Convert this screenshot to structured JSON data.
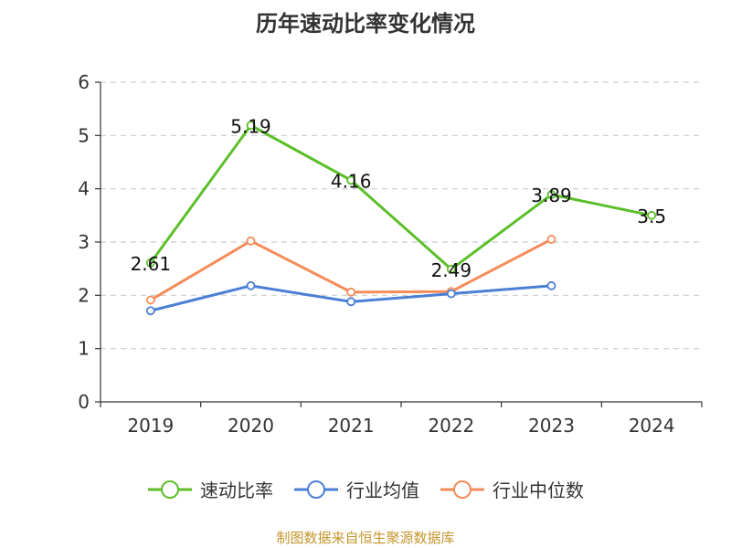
{
  "chart_data": {
    "type": "line",
    "title": "历年速动比率变化情况",
    "categories": [
      "2019",
      "2020",
      "2021",
      "2022",
      "2023",
      "2024"
    ],
    "ylim": [
      0,
      6
    ],
    "yticks": [
      0,
      1,
      2,
      3,
      4,
      5,
      6
    ],
    "grid": true,
    "legend_position": "bottom",
    "series": [
      {
        "name": "速动比率",
        "color": "#5cbf2a",
        "values": [
          2.61,
          5.19,
          4.16,
          2.49,
          3.89,
          3.5
        ],
        "labels": [
          "2.61",
          "5.19",
          "4.16",
          "2.49",
          "3.89",
          "3.5"
        ]
      },
      {
        "name": "行业均值",
        "color": "#4b7fd6",
        "values": [
          1.71,
          2.18,
          1.88,
          2.03,
          2.18,
          null
        ]
      },
      {
        "name": "行业中位数",
        "color": "#f48c5a",
        "values": [
          1.91,
          3.02,
          2.06,
          2.07,
          3.05,
          null
        ]
      }
    ]
  },
  "source": "制图数据来自恒生聚源数据库"
}
